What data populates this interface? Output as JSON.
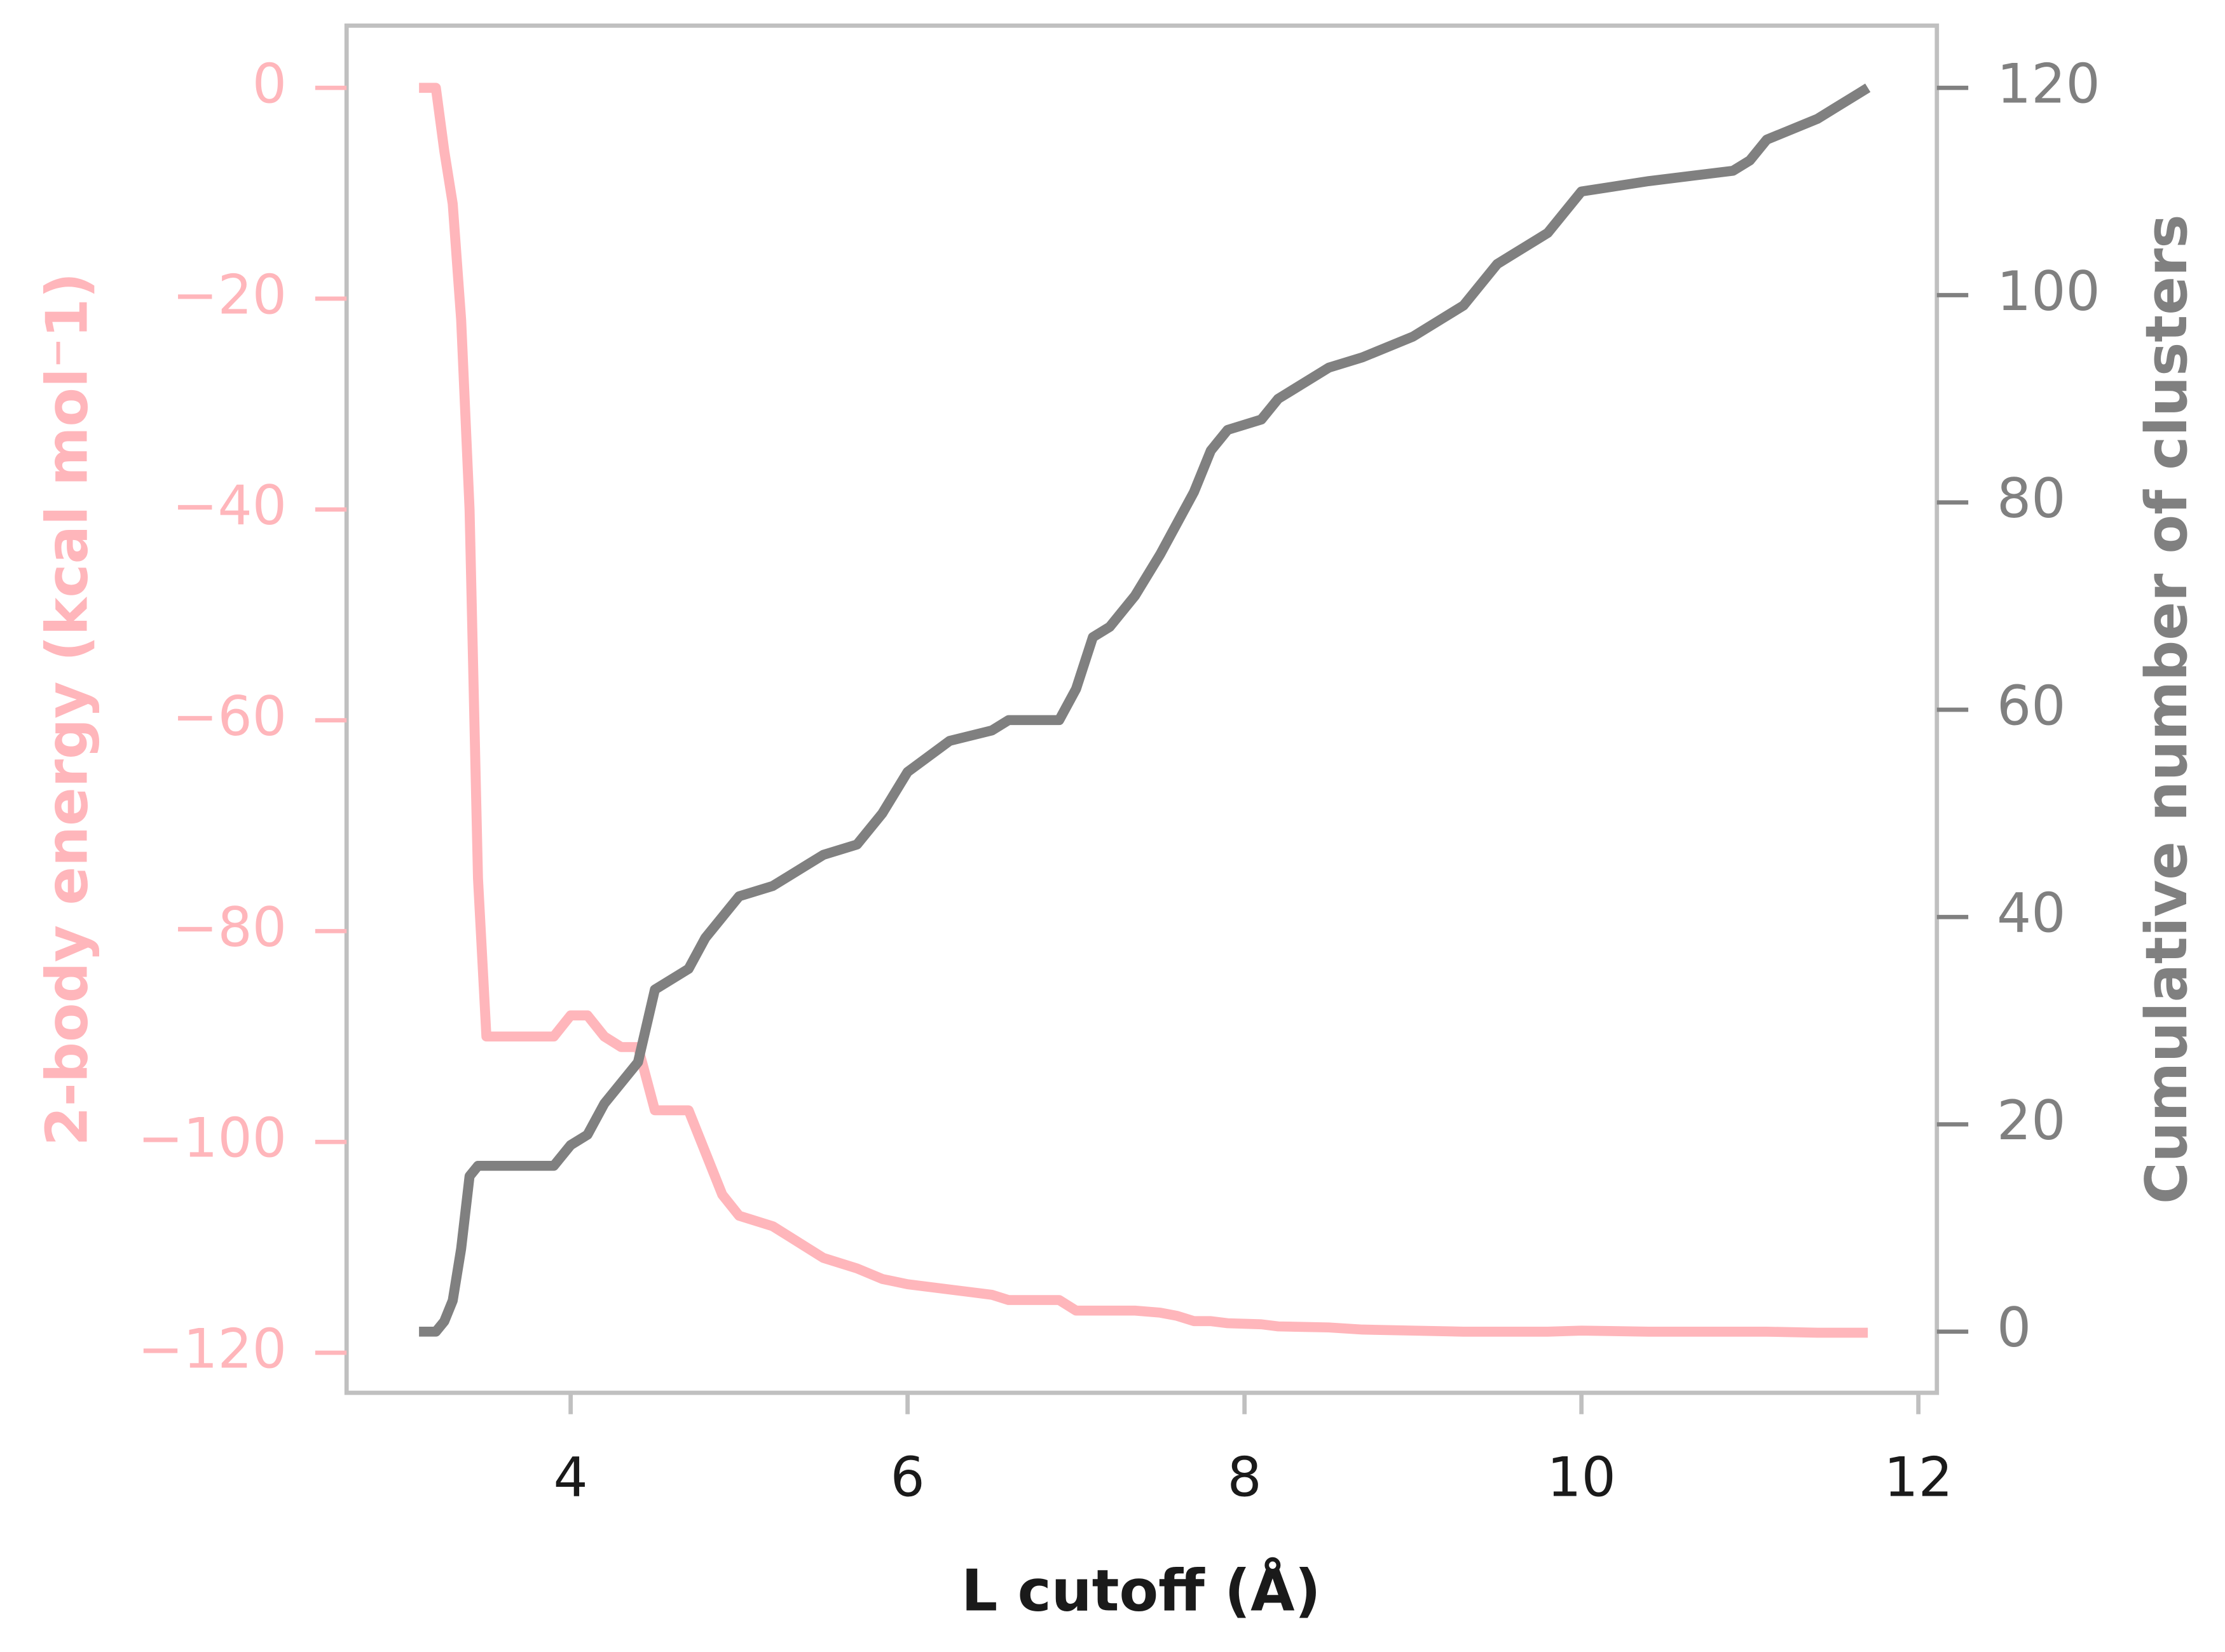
{
  "chart_data": {
    "type": "line",
    "xlabel": "L cutoff (Å)",
    "ylabel": "2-body energy (kcal mol⁻1)",
    "y2label": "Cumulative number of clusters",
    "x": [
      3.1,
      3.2,
      3.25,
      3.3,
      3.35,
      3.4,
      3.45,
      3.5,
      3.9,
      4.0,
      4.1,
      4.2,
      4.3,
      4.4,
      4.5,
      4.7,
      4.8,
      4.9,
      5.0,
      5.2,
      5.3,
      5.5,
      5.7,
      5.85,
      6.0,
      6.25,
      6.5,
      6.6,
      6.9,
      7.0,
      7.1,
      7.2,
      7.35,
      7.5,
      7.6,
      7.7,
      7.8,
      7.9,
      8.1,
      8.2,
      8.5,
      8.7,
      9.0,
      9.3,
      9.5,
      9.6,
      9.8,
      10.0,
      10.4,
      10.9,
      11.0,
      11.1,
      11.4,
      11.5,
      11.7
    ],
    "series": [
      {
        "name": "2-body energy",
        "color": "#ffb6bb",
        "axis": "y",
        "values": [
          0,
          0,
          -6,
          -11,
          -22,
          -40,
          -75,
          -90,
          -90,
          -88,
          -88,
          -90,
          -91,
          -91,
          -97,
          -97,
          -101,
          -105,
          -107,
          -108,
          -109,
          -111,
          -112,
          -113,
          -113.5,
          -114,
          -114.5,
          -115,
          -115,
          -116,
          -116,
          -116,
          -116,
          -116.2,
          -116.5,
          -117,
          -117,
          -117.2,
          -117.3,
          -117.5,
          -117.6,
          -117.8,
          -117.9,
          -118,
          -118,
          -118,
          -118,
          -117.9,
          -118,
          -118,
          -118,
          -118,
          -118.1,
          -118.1,
          -118.1
        ]
      },
      {
        "name": "Cumulative number of clusters",
        "color": "#808080",
        "axis": "y2",
        "values": [
          0,
          0,
          1,
          3,
          8,
          15,
          16,
          16,
          16,
          18,
          19,
          22,
          24,
          26,
          33,
          35,
          38,
          40,
          42,
          43,
          44,
          46,
          47,
          50,
          54,
          57,
          58,
          59,
          59,
          62,
          67,
          68,
          71,
          75,
          78,
          81,
          85,
          87,
          88,
          90,
          93,
          94,
          96,
          99,
          103,
          104,
          106,
          110,
          111,
          112,
          113,
          115,
          117,
          118,
          120
        ]
      }
    ],
    "xlim": [
      2.67,
      12.11
    ],
    "xticks": [
      4,
      6,
      8,
      10,
      12
    ],
    "ylim": [
      -123.8,
      5.9
    ],
    "yticks": [
      {
        "value": -120,
        "label": "−120"
      },
      {
        "value": -100,
        "label": "−100"
      },
      {
        "value": -80,
        "label": "−80"
      },
      {
        "value": -60,
        "label": "−60"
      },
      {
        "value": -40,
        "label": "−40"
      },
      {
        "value": -20,
        "label": "−20"
      },
      0
    ],
    "y2lim": [
      -5.9,
      126
    ],
    "y2ticks": [
      0,
      20,
      40,
      60,
      80,
      100,
      120
    ],
    "ycolor": "#ffb6bb",
    "y2color": "#808080"
  }
}
